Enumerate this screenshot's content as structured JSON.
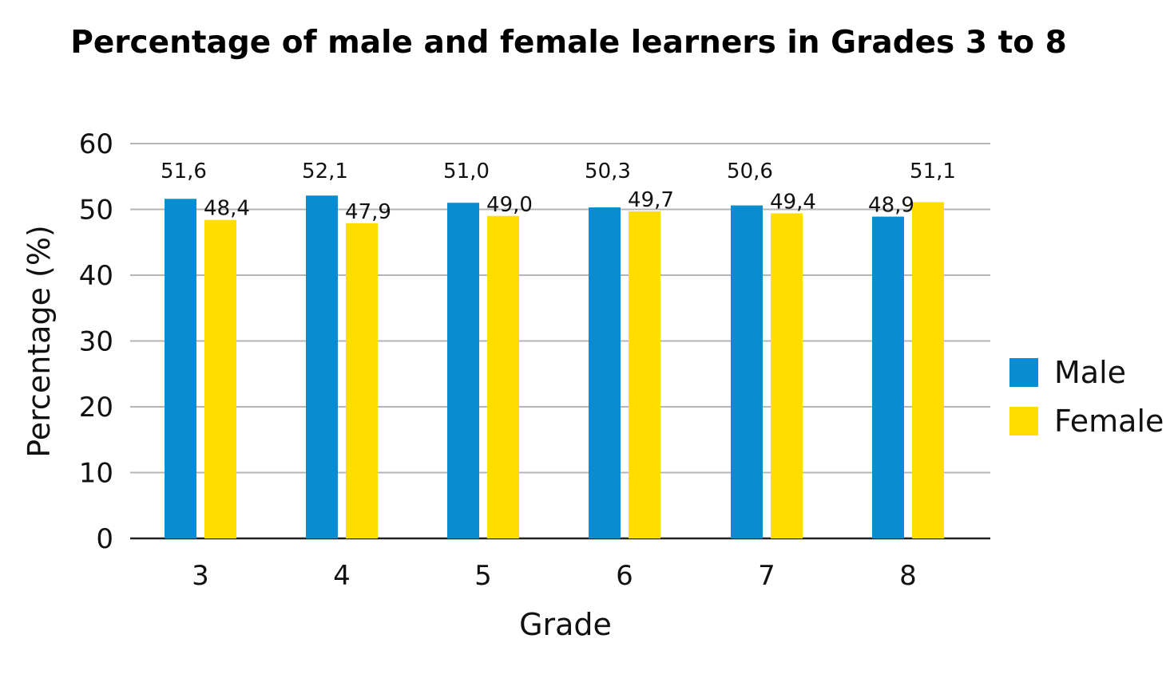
{
  "chart_data": {
    "type": "bar",
    "title": "Percentage of male and female learners in Grades 3 to 8",
    "xlabel": "Grade",
    "ylabel": "Percentage (%)",
    "categories": [
      "3",
      "4",
      "5",
      "6",
      "7",
      "8"
    ],
    "ylim": [
      0,
      60
    ],
    "yticks": [
      "0",
      "10",
      "20",
      "30",
      "40",
      "50",
      "60"
    ],
    "grid": true,
    "legend_position": "right",
    "series": [
      {
        "name": "Male",
        "color": "#0A8CD2",
        "values": [
          51.6,
          52.1,
          51.0,
          50.3,
          50.6,
          48.9
        ],
        "labels": [
          "51,6",
          "52,1",
          "51,0",
          "50,3",
          "50,6",
          "48,9"
        ]
      },
      {
        "name": "Female",
        "color": "#FFDD00",
        "values": [
          48.4,
          47.9,
          49.0,
          49.7,
          49.4,
          51.1
        ],
        "labels": [
          "48,4",
          "47,9",
          "49,0",
          "49,7",
          "49,4",
          "51,1"
        ]
      }
    ]
  }
}
